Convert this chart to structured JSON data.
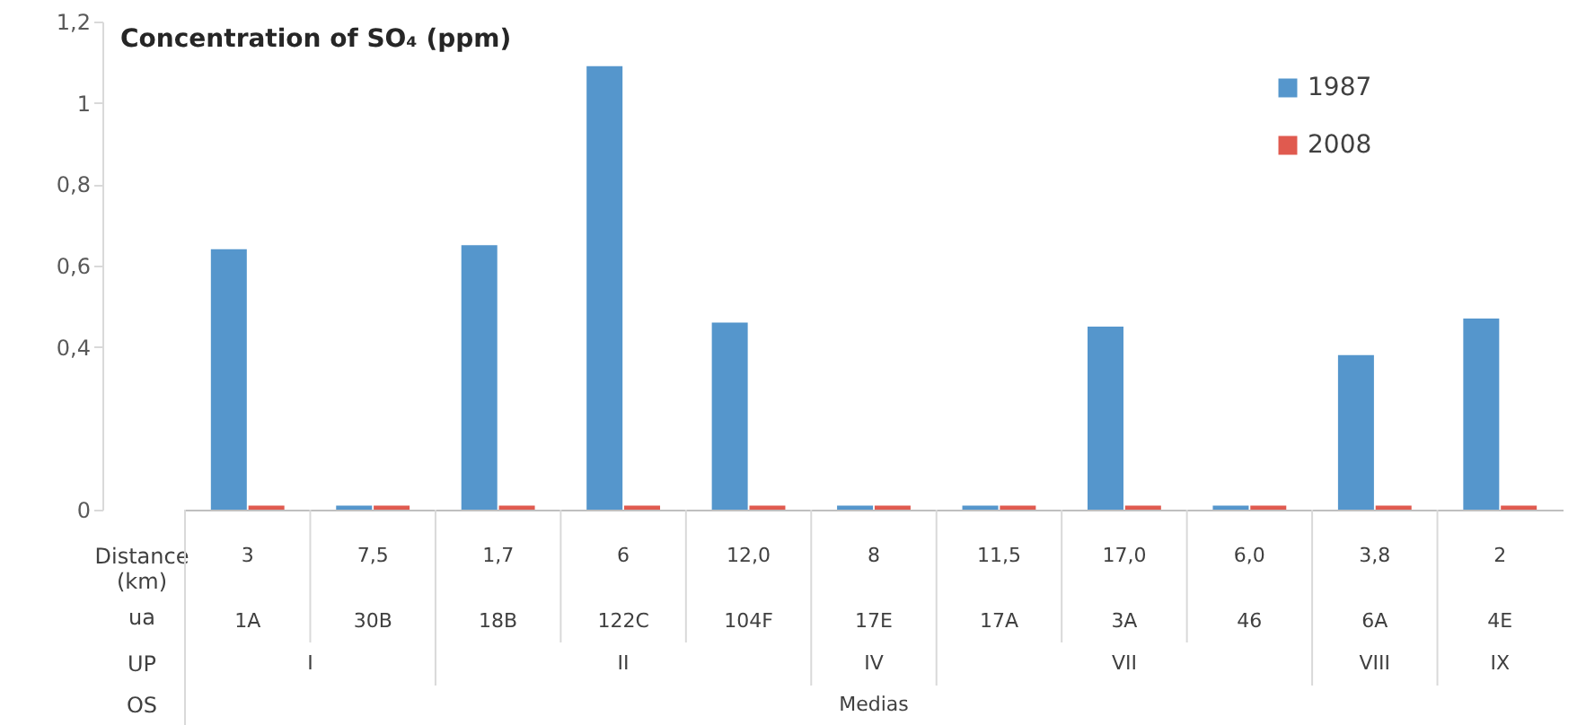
{
  "chart_data": {
    "type": "bar",
    "title": "Concentration of SO₄ (ppm)",
    "categories": [
      "1A",
      "30B",
      "18B",
      "122C",
      "104F",
      "17E",
      "17A",
      "3A",
      "46",
      "6A",
      "4E"
    ],
    "series": [
      {
        "name": "1987",
        "color": "#5596cc",
        "values": [
          0.64,
          0.01,
          0.65,
          1.09,
          0.46,
          0.01,
          0.01,
          0.45,
          0.01,
          0.38,
          0.47
        ]
      },
      {
        "name": "2008",
        "color": "#e05a4f",
        "values": [
          0.01,
          0.01,
          0.01,
          0.01,
          0.01,
          0.01,
          0.01,
          0.01,
          0.01,
          0.01,
          0.01
        ]
      }
    ],
    "ylim": [
      0,
      1.2
    ],
    "yticks": [
      0,
      {
        "value": 0.4,
        "label": "0,4"
      },
      {
        "value": 0.6,
        "label": "0,6"
      },
      {
        "value": 0.8,
        "label": "0,8"
      },
      {
        "value": 1,
        "label": "1"
      },
      {
        "value": 1.2,
        "label": "1,2"
      }
    ],
    "grid": false,
    "legend": "top right",
    "annotations": [
      "Distance (km)",
      "3",
      "7,5",
      "1,7",
      "6",
      "12,0",
      "8",
      "11,5",
      "17,0",
      "6,0",
      "3,8",
      "2",
      "ua",
      "UP",
      "I",
      "II",
      "IV",
      "VII",
      "VIII",
      "IX",
      "OS",
      "Medias"
    ]
  }
}
